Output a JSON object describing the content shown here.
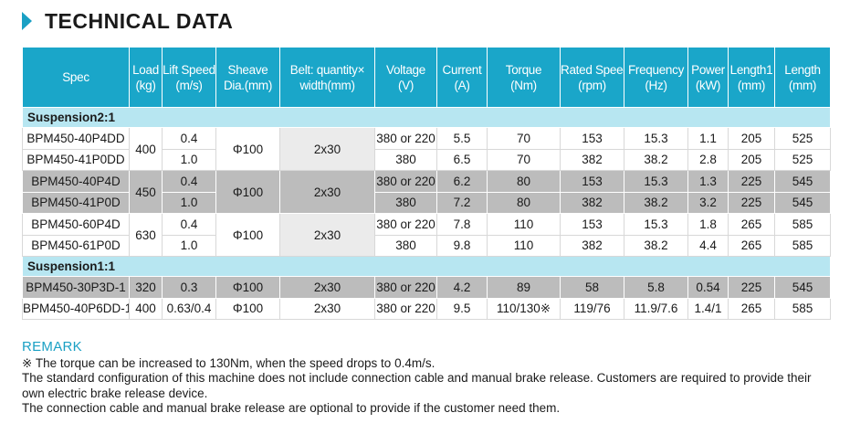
{
  "header": {
    "title": "TECHNICAL DATA"
  },
  "table": {
    "columns": [
      [
        "Spec"
      ],
      [
        "Load",
        "(kg)"
      ],
      [
        "Lift Speed",
        "(m/s)"
      ],
      [
        "Sheave",
        "Dia.(mm)"
      ],
      [
        "Belt: quantity×",
        "width(mm)"
      ],
      [
        "Voltage",
        "(V)"
      ],
      [
        "Current",
        "(A)"
      ],
      [
        "Torque",
        "(Nm)"
      ],
      [
        "Rated Speed",
        "(rpm)"
      ],
      [
        "Frequency",
        "(Hz)"
      ],
      [
        "Power",
        "(kW)"
      ],
      [
        "Length1",
        "(mm)"
      ],
      [
        "Length",
        "(mm)"
      ]
    ],
    "group1": {
      "label": "Suspension2:1",
      "blocks": [
        {
          "load": "400",
          "sheave": "Φ100",
          "belt": "2x30",
          "rows": [
            {
              "spec": "BPM450-40P4DD",
              "lift": "0.4",
              "voltage": "380 or 220",
              "current": "5.5",
              "torque": "70",
              "rpm": "153",
              "freq": "15.3",
              "power": "1.1",
              "len1": "205",
              "len": "525"
            },
            {
              "spec": "BPM450-41P0DD",
              "lift": "1.0",
              "voltage": "380",
              "current": "6.5",
              "torque": "70",
              "rpm": "382",
              "freq": "38.2",
              "power": "2.8",
              "len1": "205",
              "len": "525"
            }
          ]
        },
        {
          "load": "450",
          "sheave": "Φ100",
          "belt": "2x30",
          "rows": [
            {
              "spec": "BPM450-40P4D",
              "lift": "0.4",
              "voltage": "380 or 220",
              "current": "6.2",
              "torque": "80",
              "rpm": "153",
              "freq": "15.3",
              "power": "1.3",
              "len1": "225",
              "len": "545"
            },
            {
              "spec": "BPM450-41P0D",
              "lift": "1.0",
              "voltage": "380",
              "current": "7.2",
              "torque": "80",
              "rpm": "382",
              "freq": "38.2",
              "power": "3.2",
              "len1": "225",
              "len": "545"
            }
          ]
        },
        {
          "load": "630",
          "sheave": "Φ100",
          "belt": "2x30",
          "rows": [
            {
              "spec": "BPM450-60P4D",
              "lift": "0.4",
              "voltage": "380 or 220",
              "current": "7.8",
              "torque": "110",
              "rpm": "153",
              "freq": "15.3",
              "power": "1.8",
              "len1": "265",
              "len": "585"
            },
            {
              "spec": "BPM450-61P0D",
              "lift": "1.0",
              "voltage": "380",
              "current": "9.8",
              "torque": "110",
              "rpm": "382",
              "freq": "38.2",
              "power": "4.4",
              "len1": "265",
              "len": "585"
            }
          ]
        }
      ]
    },
    "group2": {
      "label": "Suspension1:1",
      "rows": [
        {
          "spec": "BPM450-30P3D-1",
          "load": "320",
          "lift": "0.3",
          "sheave": "Φ100",
          "belt": "2x30",
          "voltage": "380 or 220",
          "current": "4.2",
          "torque": "89",
          "rpm": "58",
          "freq": "5.8",
          "power": "0.54",
          "len1": "225",
          "len": "545"
        },
        {
          "spec": "BPM450-40P6DD-1",
          "load": "400",
          "lift": "0.63/0.4",
          "sheave": "Φ100",
          "belt": "2x30",
          "voltage": "380 or 220",
          "current": "9.5",
          "torque": "110/130※",
          "rpm": "119/76",
          "freq": "11.9/7.6",
          "power": "1.4/1",
          "len1": "265",
          "len": "585"
        }
      ]
    }
  },
  "remark": {
    "title": "REMARK",
    "lines": [
      "※ The torque can be increased to 130Nm, when the speed drops to 0.4m/s.",
      "The standard configuration of this machine does not include connection cable and manual brake release. Customers are required to provide their own electric brake release device.",
      "The connection cable and manual brake release are optional to provide if the customer need them."
    ]
  },
  "colors": {
    "accent": "#1aa6c9",
    "group_row": "#b7e6f1",
    "shaded_row": "#bcbcbc"
  }
}
